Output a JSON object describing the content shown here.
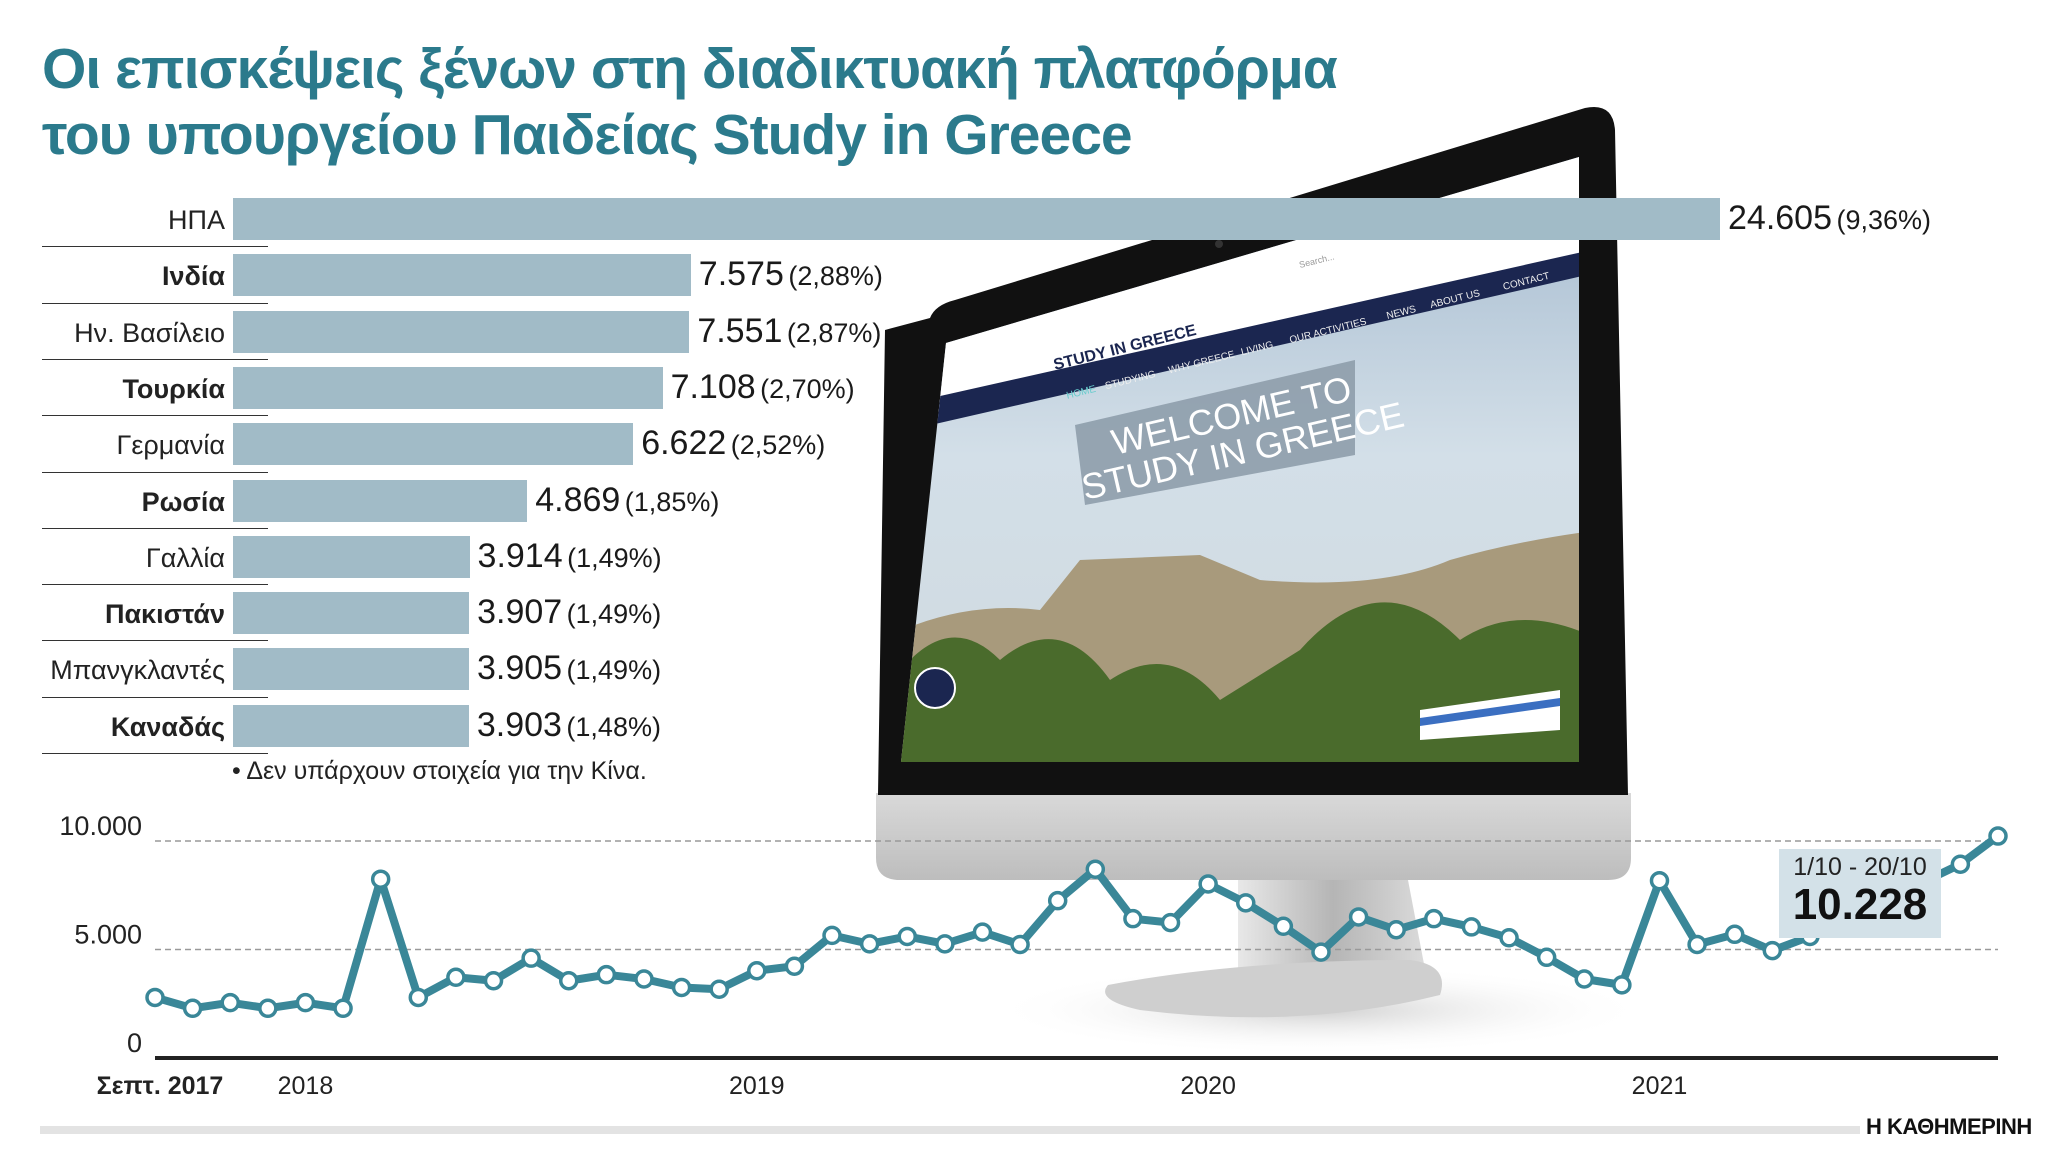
{
  "title_line1": "Οι επισκέψεις ξένων στη διαδικτυακή πλατφόρμα",
  "title_line2": "του υπουργείου Παιδείας Study in Greece",
  "colors": {
    "title": "#2b7a8c",
    "bar": "#a1bbc7",
    "line": "#3a8798",
    "callout": "#d3e1e8"
  },
  "note": "• Δεν υπάρχουν στοιχεία για την Κίνα.",
  "brand": "Η ΚΑΘΗΜΕΡΙΝΗ",
  "monitor_screen": {
    "search_placeholder": "Search...",
    "nav": [
      "HOME",
      "STUDYING",
      "WHY GREECE",
      "LIVING",
      "OUR ACTIVITIES",
      "NEWS",
      "ABOUT US",
      "CONTACT"
    ],
    "logo": "STUDY IN GREECE",
    "welcome_line1": "WELCOME TO",
    "welcome_line2": "STUDY IN GREECE"
  },
  "chart_data": [
    {
      "type": "bar",
      "orientation": "horizontal",
      "categories": [
        "ΗΠΑ",
        "Ινδία",
        "Ην. Βασίλειο",
        "Τουρκία",
        "Γερμανία",
        "Ρωσία",
        "Γαλλία",
        "Πακιστάν",
        "Μπανγκλαντές",
        "Καναδάς"
      ],
      "bold_categories": [
        "Ινδία",
        "Τουρκία",
        "Ρωσία",
        "Πακιστάν",
        "Καναδάς"
      ],
      "values": [
        24605,
        7575,
        7551,
        7108,
        6622,
        4869,
        3914,
        3907,
        3905,
        3903
      ],
      "value_labels": [
        "24.605",
        "7.575",
        "7.551",
        "7.108",
        "6.622",
        "4.869",
        "3.914",
        "3.907",
        "3.905",
        "3.903"
      ],
      "percent_labels": [
        "(9,36%)",
        "(2,88%)",
        "(2,87%)",
        "(2,70%)",
        "(2,52%)",
        "(1,85%)",
        "(1,49%)",
        "(1,49%)",
        "(1,49%)",
        "(1,48%)"
      ]
    },
    {
      "type": "line",
      "x_start": "Σεπτ. 2017",
      "x_end": "1/10 - 20/10 2021",
      "x_tick_labels": [
        {
          "label": "Σεπτ. 2017",
          "index": 0,
          "bold": true
        },
        {
          "label": "2018",
          "index": 4
        },
        {
          "label": "2019",
          "index": 16
        },
        {
          "label": "2020",
          "index": 28
        },
        {
          "label": "2021",
          "index": 40
        }
      ],
      "y_ticks": [
        {
          "value": 0,
          "label": "0"
        },
        {
          "value": 5000,
          "label": "5.000"
        },
        {
          "value": 10000,
          "label": "10.000"
        }
      ],
      "ylim": [
        0,
        10500
      ],
      "grid": "dashed horizontal at 5.000 and 10.000",
      "values": [
        2790,
        2290,
        2550,
        2290,
        2550,
        2290,
        8240,
        2790,
        3720,
        3560,
        4600,
        3560,
        3840,
        3640,
        3250,
        3170,
        4020,
        4230,
        5650,
        5260,
        5600,
        5260,
        5800,
        5230,
        7250,
        8700,
        6420,
        6240,
        8020,
        7150,
        6070,
        4880,
        6500,
        5910,
        6420,
        6040,
        5540,
        4640,
        3640,
        3370,
        8170,
        5230,
        5700,
        4950,
        5600,
        6400,
        7300,
        8100,
        8930,
        10228
      ],
      "callout": {
        "period": "1/10 - 20/10",
        "value_label": "10.228"
      }
    }
  ]
}
